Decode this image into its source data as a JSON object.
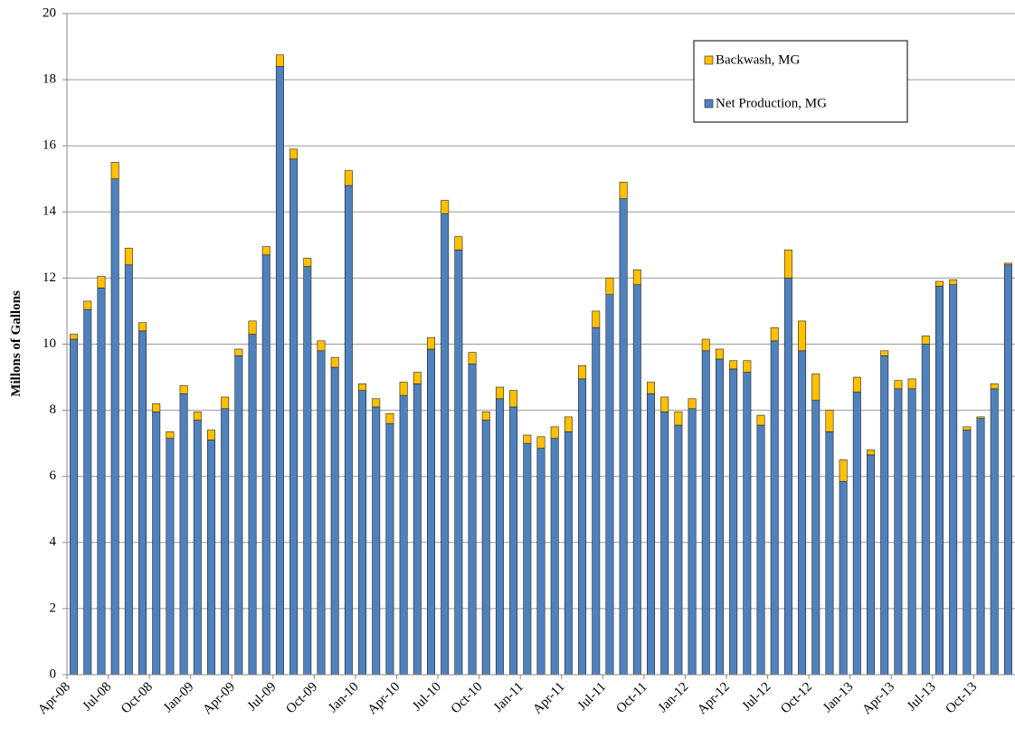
{
  "chart_data": {
    "type": "stacked-bar",
    "y_label": "Millons of Gallons",
    "categories": [
      "Apr-08",
      null,
      null,
      "Jul-08",
      null,
      null,
      "Oct-08",
      null,
      null,
      "Jan-09",
      null,
      null,
      "Apr-09",
      null,
      null,
      "Jul-09",
      null,
      null,
      "Oct-09",
      null,
      null,
      "Jan-10",
      null,
      null,
      "Apr-10",
      null,
      null,
      "Jul-10",
      null,
      null,
      "Oct-10",
      null,
      null,
      "Jan-11",
      null,
      null,
      "Apr-11",
      null,
      null,
      "Jul-11",
      null,
      null,
      "Oct-11",
      null,
      null,
      "Jan-12",
      null,
      null,
      "Apr-12",
      null,
      null,
      "Jul-12",
      null,
      null,
      "Oct-12",
      null,
      null,
      "Jan-13",
      null,
      null,
      "Apr-13",
      null,
      null,
      "Jul-13",
      null,
      null,
      "Oct-13",
      null,
      null
    ],
    "series": [
      {
        "name": "Net Production, MG",
        "color": "#4f81bd",
        "values": [
          10.15,
          11.05,
          11.7,
          15.0,
          12.4,
          10.4,
          7.95,
          7.15,
          8.5,
          7.7,
          7.1,
          8.05,
          9.65,
          10.3,
          12.7,
          18.4,
          15.6,
          12.35,
          9.8,
          9.3,
          14.8,
          8.6,
          8.1,
          7.6,
          8.45,
          8.8,
          9.85,
          13.95,
          12.85,
          9.4,
          7.7,
          8.35,
          8.1,
          7.0,
          6.85,
          7.15,
          7.35,
          8.95,
          10.5,
          11.5,
          14.4,
          11.8,
          8.5,
          7.95,
          7.55,
          8.05,
          9.8,
          9.55,
          9.25,
          9.15,
          7.55,
          10.1,
          12.0,
          9.8,
          8.3,
          7.35,
          5.85,
          8.55,
          6.65,
          9.65,
          8.65,
          8.65,
          10.0,
          11.75,
          11.8,
          7.4,
          7.75,
          8.65,
          12.4
        ]
      },
      {
        "name": "Backwash, MG",
        "color": "#ffc000",
        "values": [
          0.15,
          0.25,
          0.35,
          0.5,
          0.5,
          0.25,
          0.25,
          0.2,
          0.25,
          0.25,
          0.3,
          0.35,
          0.2,
          0.4,
          0.25,
          0.35,
          0.3,
          0.25,
          0.3,
          0.3,
          0.45,
          0.2,
          0.25,
          0.3,
          0.4,
          0.35,
          0.35,
          0.4,
          0.4,
          0.35,
          0.25,
          0.35,
          0.5,
          0.25,
          0.35,
          0.35,
          0.45,
          0.4,
          0.5,
          0.5,
          0.5,
          0.45,
          0.35,
          0.45,
          0.4,
          0.3,
          0.35,
          0.3,
          0.25,
          0.35,
          0.3,
          0.4,
          0.85,
          0.9,
          0.8,
          0.65,
          0.65,
          0.45,
          0.15,
          0.15,
          0.25,
          0.3,
          0.25,
          0.15,
          0.15,
          0.1,
          0.05,
          0.15,
          0.05
        ]
      }
    ],
    "ylim": [
      0,
      20
    ],
    "yticks": [
      0,
      2,
      4,
      6,
      8,
      10,
      12,
      14,
      16,
      18,
      20
    ],
    "grid": true,
    "legend": "upper right"
  }
}
